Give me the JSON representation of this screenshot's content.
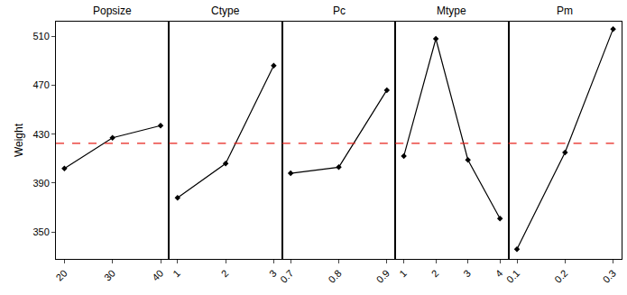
{
  "chart_data": [
    {
      "type": "line",
      "title": "Popsize",
      "y_label": "Weight",
      "categories": [
        "20",
        "30",
        "40"
      ],
      "values": [
        402,
        427,
        437
      ],
      "mean": 422.5,
      "ylim": [
        328,
        522
      ],
      "yticks": [
        350,
        390,
        430,
        470,
        510
      ],
      "color": "#000000",
      "marker": "diamond",
      "line_style": "solid"
    },
    {
      "type": "line",
      "title": "Ctype",
      "categories": [
        "1",
        "2",
        "3"
      ],
      "values": [
        378,
        406,
        486
      ],
      "mean": 422.5,
      "ylim": [
        328,
        522
      ],
      "yticks": [
        350,
        390,
        430,
        470,
        510
      ],
      "tick_labels": "x",
      "color": "#000000",
      "marker": "diamond",
      "line_style": "solid"
    },
    {
      "type": "line",
      "title": "Pc",
      "categories": [
        "0.7",
        "0.8",
        "0.9"
      ],
      "values": [
        398,
        403,
        466
      ],
      "mean": 422.5,
      "ylim": [
        328,
        522
      ],
      "yticks": [
        350,
        390,
        430,
        470,
        510
      ],
      "tick_labels": "x",
      "color": "#000000",
      "marker": "diamond",
      "line_style": "solid"
    },
    {
      "type": "line",
      "title": "Mtype",
      "categories": [
        "1",
        "2",
        "3",
        "4"
      ],
      "values": [
        412,
        508,
        409,
        361
      ],
      "mean": 422.5,
      "ylim": [
        328,
        522
      ],
      "yticks": [
        350,
        390,
        430,
        470,
        510
      ],
      "tick_labels": "x",
      "color": "#000000",
      "marker": "diamond",
      "line_style": "solid"
    },
    {
      "type": "line",
      "title": "Pm",
      "categories": [
        "0.1",
        "0.2",
        "0.3"
      ],
      "values": [
        336,
        415,
        516
      ],
      "mean": 422.5,
      "ylim": [
        328,
        522
      ],
      "yticks": [
        350,
        390,
        430,
        470,
        510
      ],
      "tick_labels": "x",
      "color": "#000000",
      "marker": "diamond",
      "line_style": "solid"
    }
  ]
}
